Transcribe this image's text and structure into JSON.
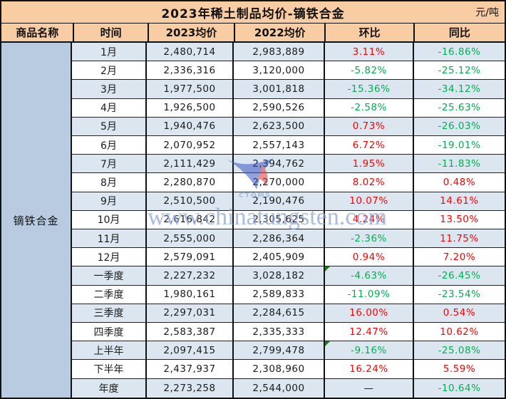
{
  "title": "2023年稀土制品均价-镝铁合金",
  "unit": "元/吨",
  "columns": {
    "product": "商品名称",
    "time": "时间",
    "avg_2023": "2023均价",
    "avg_2022": "2022均价",
    "mom": "环比",
    "yoy": "同比"
  },
  "product_name": "镝铁合金",
  "watermark": {
    "logo_label": "CTOMS",
    "site_text": "www.chinatungsten.com"
  },
  "colors": {
    "header_bg": "#f9cda4",
    "row_alt_bg": "#dce6f1",
    "product_bg": "#b8cbe1",
    "positive_red": "#ff0000",
    "negative_green": "#00b050"
  },
  "rows": [
    {
      "time": "1月",
      "price_2023": "2,480,714",
      "price_2022": "2,983,889",
      "mom": "3.11%",
      "yoy": "-16.86%"
    },
    {
      "time": "2月",
      "price_2023": "2,336,316",
      "price_2022": "3,120,000",
      "mom": "-5.82%",
      "yoy": "-25.12%"
    },
    {
      "time": "3月",
      "price_2023": "1,977,500",
      "price_2022": "3,001,818",
      "mom": "-15.36%",
      "yoy": "-34.12%"
    },
    {
      "time": "4月",
      "price_2023": "1,926,500",
      "price_2022": "2,590,526",
      "mom": "-2.58%",
      "yoy": "-25.63%"
    },
    {
      "time": "5月",
      "price_2023": "1,940,476",
      "price_2022": "2,623,500",
      "mom": "0.73%",
      "yoy": "-26.03%"
    },
    {
      "time": "6月",
      "price_2023": "2,070,952",
      "price_2022": "2,557,143",
      "mom": "6.72%",
      "yoy": "-19.01%"
    },
    {
      "time": "7月",
      "price_2023": "2,111,429",
      "price_2022": "2,394,762",
      "mom": "1.95%",
      "yoy": "-11.83%"
    },
    {
      "time": "8月",
      "price_2023": "2,280,870",
      "price_2022": "2,270,000",
      "mom": "8.02%",
      "yoy": "0.48%"
    },
    {
      "time": "9月",
      "price_2023": "2,510,500",
      "price_2022": "2,190,476",
      "mom": "10.07%",
      "yoy": "14.61%"
    },
    {
      "time": "10月",
      "price_2023": "2,616,842",
      "price_2022": "2,305,625",
      "mom": "4.24%",
      "yoy": "13.50%"
    },
    {
      "time": "11月",
      "price_2023": "2,555,000",
      "price_2022": "2,286,364",
      "mom": "-2.36%",
      "yoy": "11.75%"
    },
    {
      "time": "12月",
      "price_2023": "2,579,091",
      "price_2022": "2,405,909",
      "mom": "0.94%",
      "yoy": "7.20%"
    },
    {
      "time": "一季度",
      "price_2023": "2,227,232",
      "price_2022": "3,028,182",
      "mom": "-4.63%",
      "yoy": "-26.45%",
      "corner_flag": true
    },
    {
      "time": "二季度",
      "price_2023": "1,980,161",
      "price_2022": "2,589,833",
      "mom": "-11.09%",
      "yoy": "-23.54%"
    },
    {
      "time": "三季度",
      "price_2023": "2,297,031",
      "price_2022": "2,284,615",
      "mom": "16.00%",
      "yoy": "0.54%"
    },
    {
      "time": "四季度",
      "price_2023": "2,583,387",
      "price_2022": "2,335,333",
      "mom": "12.47%",
      "yoy": "10.62%"
    },
    {
      "time": "上半年",
      "price_2023": "2,097,415",
      "price_2022": "2,799,478",
      "mom": "-9.16%",
      "yoy": "-25.08%",
      "corner_flag": true
    },
    {
      "time": "下半年",
      "price_2023": "2,437,937",
      "price_2022": "2,308,960",
      "mom": "16.24%",
      "yoy": "5.59%"
    },
    {
      "time": "年度",
      "price_2023": "2,273,258",
      "price_2022": "2,544,000",
      "mom": "—",
      "yoy": "-10.64%"
    }
  ],
  "chart_data": {
    "type": "table",
    "title": "2023年稀土制品均价-镝铁合金",
    "unit": "元/吨",
    "product": "镝铁合金",
    "columns": [
      "时间",
      "2023均价",
      "2022均价",
      "环比",
      "同比"
    ],
    "rows": [
      [
        "1月",
        2480714,
        2983889,
        3.11,
        -16.86
      ],
      [
        "2月",
        2336316,
        3120000,
        -5.82,
        -25.12
      ],
      [
        "3月",
        1977500,
        3001818,
        -15.36,
        -34.12
      ],
      [
        "4月",
        1926500,
        2590526,
        -2.58,
        -25.63
      ],
      [
        "5月",
        1940476,
        2623500,
        0.73,
        -26.03
      ],
      [
        "6月",
        2070952,
        2557143,
        6.72,
        -19.01
      ],
      [
        "7月",
        2111429,
        2394762,
        1.95,
        -11.83
      ],
      [
        "8月",
        2280870,
        2270000,
        8.02,
        0.48
      ],
      [
        "9月",
        2510500,
        2190476,
        10.07,
        14.61
      ],
      [
        "10月",
        2616842,
        2305625,
        4.24,
        13.5
      ],
      [
        "11月",
        2555000,
        2286364,
        -2.36,
        11.75
      ],
      [
        "12月",
        2579091,
        2405909,
        0.94,
        7.2
      ],
      [
        "一季度",
        2227232,
        3028182,
        -4.63,
        -26.45
      ],
      [
        "二季度",
        1980161,
        2589833,
        -11.09,
        -23.54
      ],
      [
        "三季度",
        2297031,
        2284615,
        16.0,
        0.54
      ],
      [
        "四季度",
        2583387,
        2335333,
        12.47,
        10.62
      ],
      [
        "上半年",
        2097415,
        2799478,
        -9.16,
        -25.08
      ],
      [
        "下半年",
        2437937,
        2308960,
        16.24,
        5.59
      ],
      [
        "年度",
        2273258,
        2544000,
        null,
        -10.64
      ]
    ],
    "notes": "环比/同比: positive values rendered red, negative values rendered green; 年度 环比 shown as — (em dash)"
  }
}
